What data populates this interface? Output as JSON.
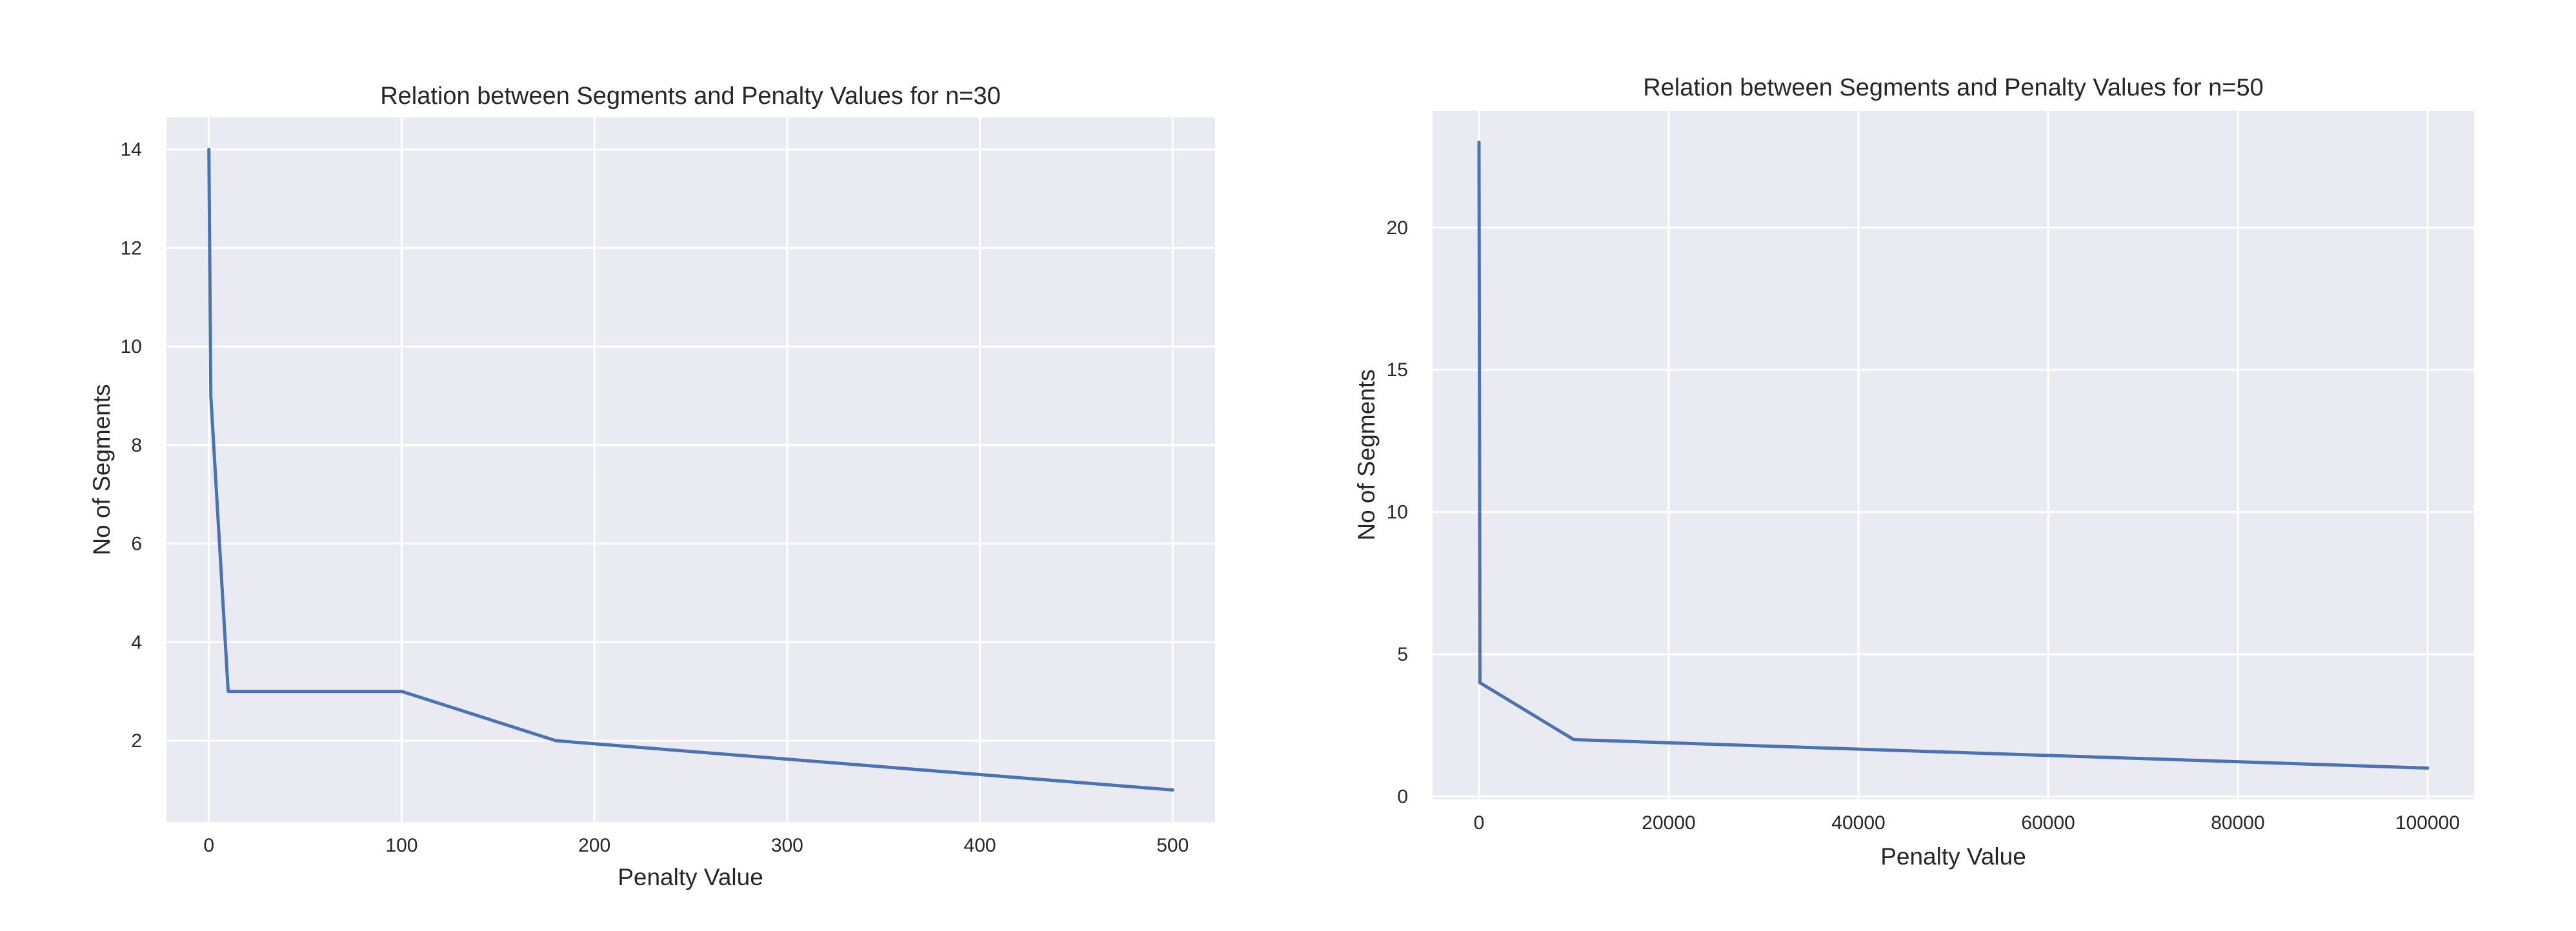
{
  "chart_data": [
    {
      "type": "line",
      "title": "Relation between Segments and Penalty Values for n=30",
      "xlabel": "Penalty Value",
      "ylabel": "No of Segments",
      "xlim": [
        -22,
        522
      ],
      "ylim": [
        0.35,
        14.65
      ],
      "xticks": [
        0,
        100,
        200,
        300,
        400,
        500
      ],
      "yticks": [
        2,
        4,
        6,
        8,
        10,
        12,
        14
      ],
      "grid": true,
      "series": [
        {
          "color": "#4c72b0",
          "x": [
            0,
            1,
            10,
            100,
            180,
            500
          ],
          "y": [
            14,
            9,
            3,
            3,
            2,
            1
          ]
        }
      ]
    },
    {
      "type": "line",
      "title": "Relation between Segments and Penalty Values for n=50",
      "xlabel": "Penalty Value",
      "ylabel": "No of Segments",
      "xlim": [
        -4900,
        104900
      ],
      "ylim": [
        -0.1,
        24.1
      ],
      "xticks": [
        0,
        20000,
        40000,
        60000,
        80000,
        100000
      ],
      "yticks": [
        0,
        5,
        10,
        15,
        20
      ],
      "grid": true,
      "series": [
        {
          "color": "#4c72b0",
          "x": [
            0,
            100,
            10000,
            100000
          ],
          "y": [
            23,
            4,
            2,
            1
          ]
        }
      ]
    }
  ]
}
